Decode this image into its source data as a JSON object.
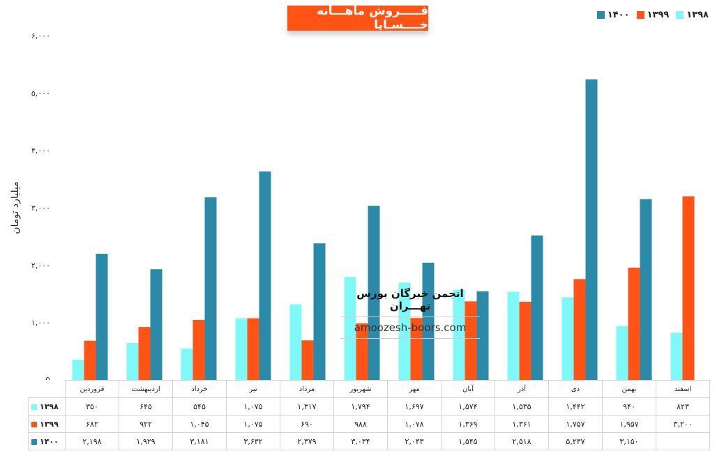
{
  "chart_data": {
    "type": "bar",
    "title": "فـــــروش ماهـــانه خــــسـاپا",
    "ylabel": "میلیارد تومان",
    "ylim": [
      0,
      6000
    ],
    "yticks": [
      "0",
      "۱,۰۰۰",
      "۲,۰۰۰",
      "۳,۰۰۰",
      "۴,۰۰۰",
      "۵,۰۰۰",
      "۶,۰۰۰"
    ],
    "categories": [
      "فروردین",
      "اردیبهشت",
      "خرداد",
      "تیر",
      "مرداد",
      "شهریور",
      "مهر",
      "آبان",
      "آذر",
      "دی",
      "بهمن",
      "اسفند"
    ],
    "series": [
      {
        "name": "۱۳۹۸",
        "color": "#7ff8f8",
        "values": [
          350,
          645,
          545,
          1075,
          1317,
          1794,
          1697,
          1574,
          1535,
          1442,
          940,
          823
        ],
        "labels": [
          "۳۵۰",
          "۶۴۵",
          "۵۴۵",
          "۱,۰۷۵",
          "۱,۳۱۷",
          "۱,۷۹۴",
          "۱,۶۹۷",
          "۱,۵۷۴",
          "۱,۵۳۵",
          "۱,۴۴۲",
          "۹۴۰",
          "۸۲۳"
        ]
      },
      {
        "name": "۱۳۹۹",
        "color": "#ff5416",
        "values": [
          682,
          922,
          1045,
          1075,
          690,
          988,
          1078,
          1369,
          1361,
          1757,
          1957,
          3200
        ],
        "labels": [
          "۶۸۲",
          "۹۲۲",
          "۱,۰۴۵",
          "۱,۰۷۵",
          "۶۹۰",
          "۹۸۸",
          "۱,۰۷۸",
          "۱,۳۶۹",
          "۱,۳۶۱",
          "۱,۷۵۷",
          "۱,۹۵۷",
          "۳,۲۰۰"
        ]
      },
      {
        "name": "۱۴۰۰",
        "color": "#2a8aa8",
        "values": [
          2198,
          1929,
          3181,
          3632,
          2379,
          3034,
          2043,
          1545,
          2518,
          5237,
          3150,
          null
        ],
        "labels": [
          "۲,۱۹۸",
          "۱,۹۲۹",
          "۳,۱۸۱",
          "۳,۶۳۲",
          "۲,۳۷۹",
          "۳,۰۳۴",
          "۲,۰۴۳",
          "۱,۵۴۵",
          "۲,۵۱۸",
          "۵,۲۳۷",
          "۳,۱۵۰",
          ""
        ]
      }
    ],
    "legend_position": "top-right",
    "grid": false
  },
  "watermark": {
    "title": "انجمن خبرگان بورس تهـــران",
    "url": "amoozesh-boors.com"
  }
}
